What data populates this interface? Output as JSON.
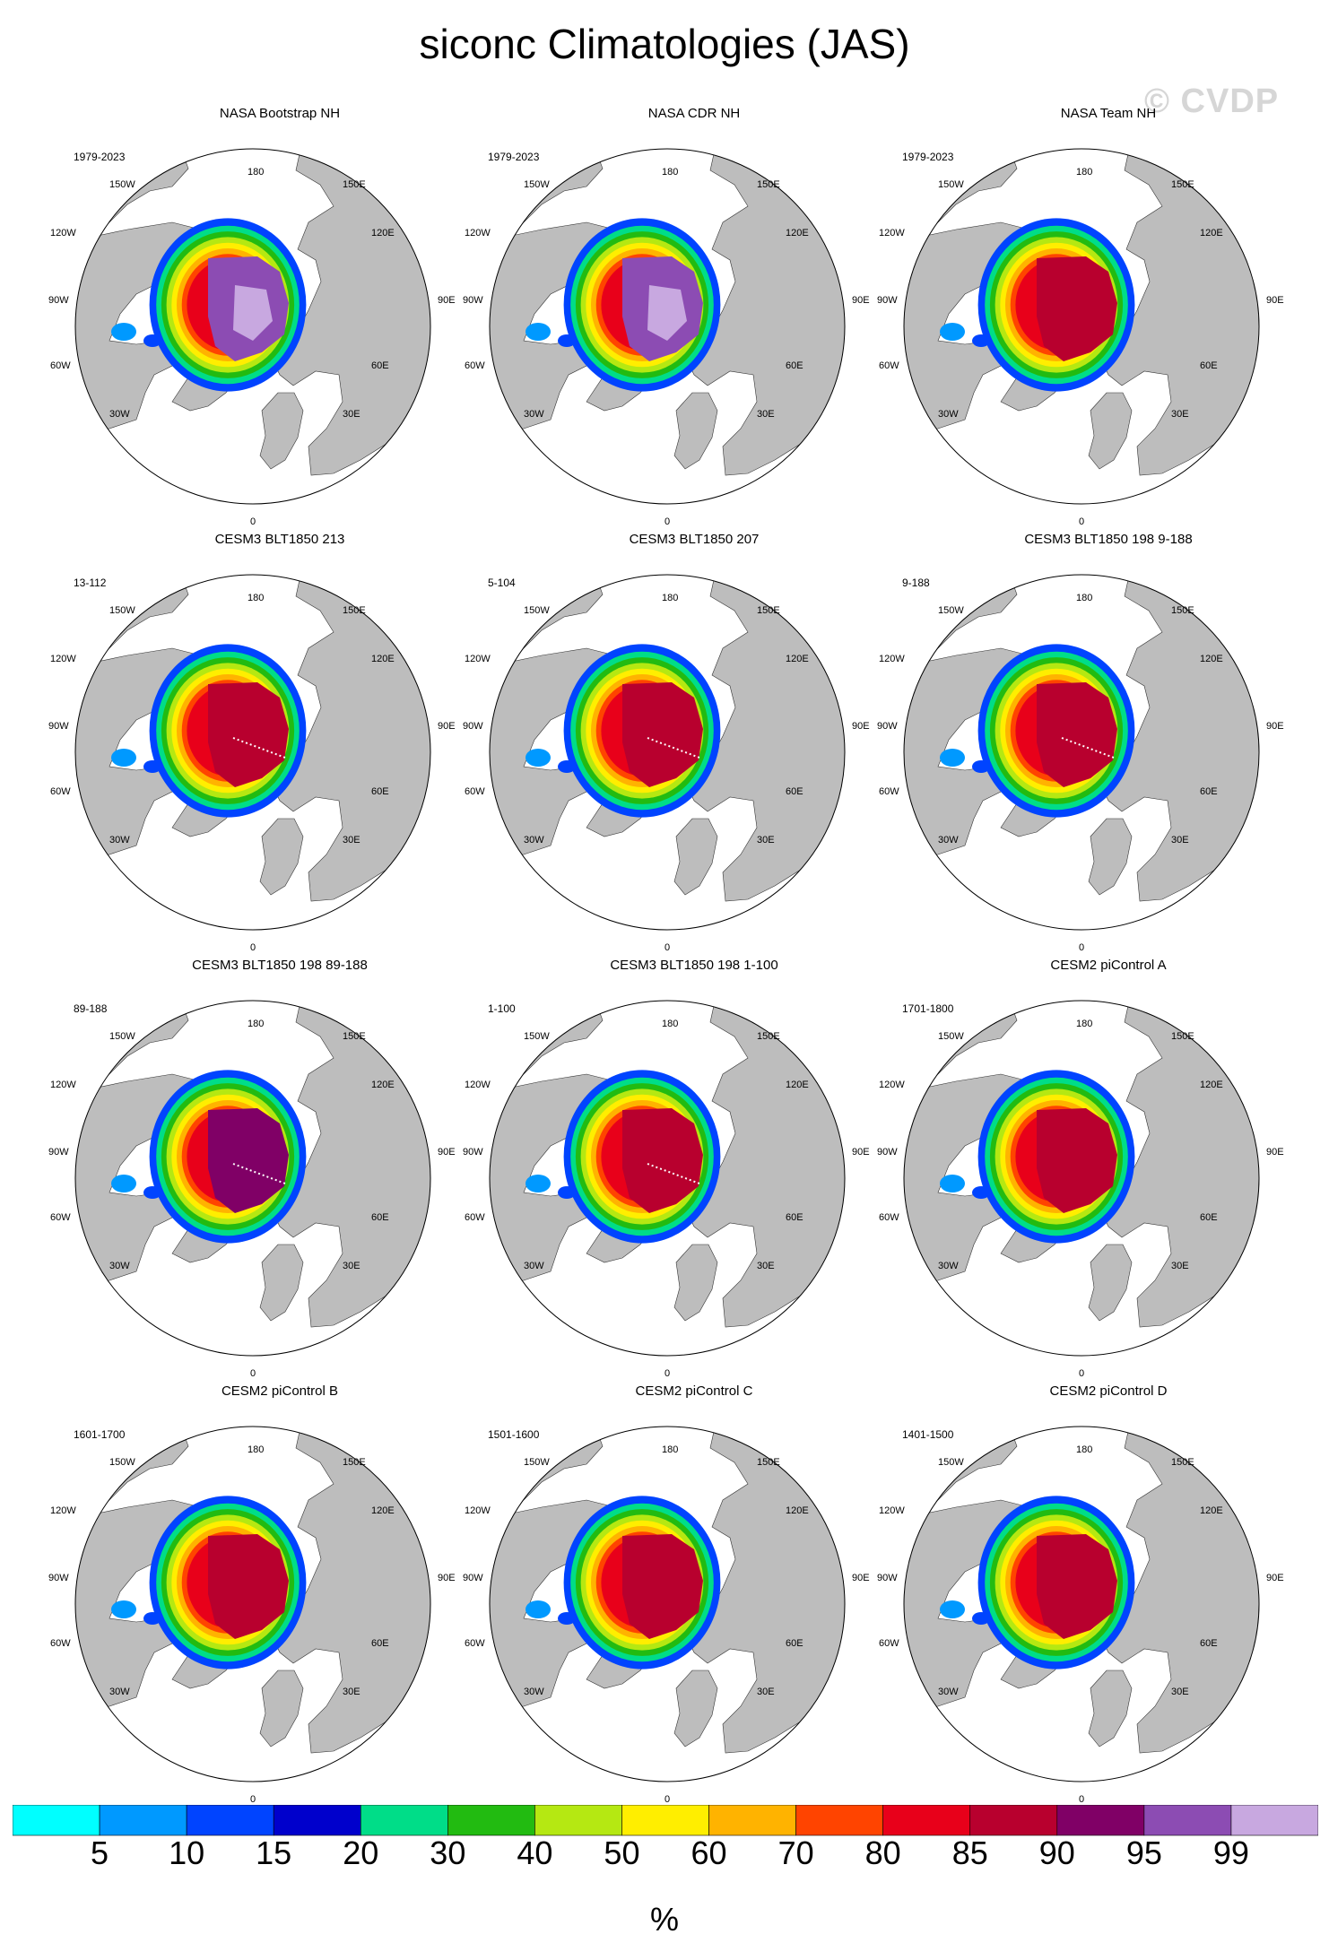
{
  "title": "siconc Climatologies (JAS)",
  "watermark": "© CVDP",
  "map_labels": {
    "top": "180",
    "bottom": "0",
    "ul": "150W",
    "ur": "150E",
    "lu": "120W",
    "ru": "120E",
    "l": "90W",
    "r": "90E",
    "ll": "60W",
    "rl": "60E",
    "bl": "30W",
    "br": "30E"
  },
  "panels": [
    {
      "title": "NASA Bootstrap NH",
      "period": "1979-2023",
      "pack": 95,
      "dots": false
    },
    {
      "title": "NASA CDR NH",
      "period": "1979-2023",
      "pack": 95,
      "dots": false
    },
    {
      "title": "NASA Team NH",
      "period": "1979-2023",
      "pack": 85,
      "dots": false
    },
    {
      "title": "CESM3 BLT1850 213",
      "period": "13-112",
      "pack": 85,
      "dots": true
    },
    {
      "title": "CESM3 BLT1850 207",
      "period": "5-104",
      "pack": 85,
      "dots": true
    },
    {
      "title": "CESM3 BLT1850 198 9-188",
      "period": "9-188",
      "pack": 85,
      "dots": true
    },
    {
      "title": "CESM3 BLT1850 198 89-188",
      "period": "89-188",
      "pack": 90,
      "dots": true
    },
    {
      "title": "CESM3 BLT1850 198 1-100",
      "period": "1-100",
      "pack": 85,
      "dots": true
    },
    {
      "title": "CESM2 piControl A",
      "period": "1701-1800",
      "pack": 85,
      "dots": false
    },
    {
      "title": "CESM2 piControl B",
      "period": "1601-1700",
      "pack": 85,
      "dots": false
    },
    {
      "title": "CESM2 piControl C",
      "period": "1501-1600",
      "pack": 85,
      "dots": false
    },
    {
      "title": "CESM2 piControl D",
      "period": "1401-1500",
      "pack": 85,
      "dots": false
    }
  ],
  "colorbar": {
    "unit": "%",
    "labels": [
      "5",
      "10",
      "15",
      "20",
      "30",
      "40",
      "50",
      "60",
      "70",
      "80",
      "85",
      "90",
      "95",
      "99"
    ],
    "colors": [
      "#00ffff",
      "#0099ff",
      "#0044ff",
      "#0000cc",
      "#00dd88",
      "#22bb11",
      "#b5e812",
      "#ffee00",
      "#ffb300",
      "#ff4400",
      "#e8001a",
      "#b8002e",
      "#800066",
      "#8c4cb3",
      "#c8a8e0"
    ]
  }
}
